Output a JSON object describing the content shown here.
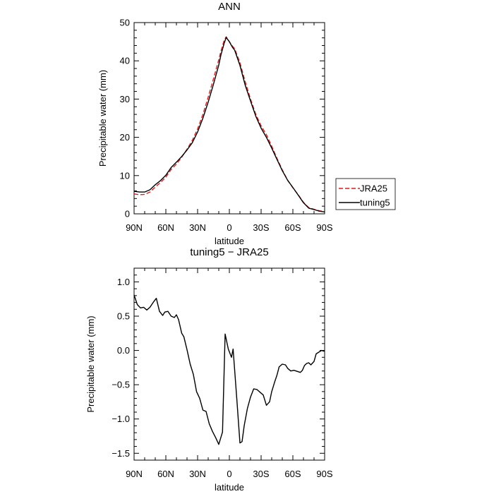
{
  "chart_data": [
    {
      "type": "line",
      "title": "ANN",
      "xlabel": "latitude",
      "ylabel": "Precipitable water  (mm)",
      "x_ticks": [
        {
          "value": 90,
          "label": "90N"
        },
        {
          "value": 60,
          "label": "60N"
        },
        {
          "value": 30,
          "label": "30N"
        },
        {
          "value": 0,
          "label": "0"
        },
        {
          "value": -30,
          "label": "30S"
        },
        {
          "value": -60,
          "label": "60S"
        },
        {
          "value": -90,
          "label": "90S"
        }
      ],
      "xlim": [
        90,
        -90
      ],
      "ylim": [
        0,
        50
      ],
      "y_ticks": [
        {
          "value": 0,
          "label": "0"
        },
        {
          "value": 10,
          "label": "10"
        },
        {
          "value": 20,
          "label": "20"
        },
        {
          "value": 30,
          "label": "30"
        },
        {
          "value": 40,
          "label": "40"
        },
        {
          "value": 50,
          "label": "50"
        }
      ],
      "legend_position": "right",
      "series": [
        {
          "name": "JRA25",
          "color": "#e41a1c",
          "dash": "dashed",
          "x": [
            90,
            85,
            80,
            75,
            70,
            65,
            60,
            55,
            50,
            45,
            40,
            35,
            30,
            25,
            20,
            15,
            10,
            8,
            5,
            3,
            0,
            -3,
            -5,
            -10,
            -15,
            -20,
            -25,
            -30,
            -35,
            -40,
            -45,
            -50,
            -55,
            -60,
            -65,
            -70,
            -75,
            -80,
            -85,
            -90
          ],
          "y": [
            5.2,
            5.0,
            5.1,
            5.7,
            7.0,
            8.2,
            9.6,
            11.6,
            13.0,
            14.8,
            16.9,
            19.2,
            22.2,
            26.0,
            30.5,
            35.3,
            40.3,
            42.5,
            45.3,
            46.3,
            45.0,
            43.8,
            43.2,
            39.5,
            34.5,
            30.0,
            26.0,
            23.0,
            20.7,
            17.7,
            14.5,
            11.5,
            8.8,
            6.8,
            5.0,
            3.0,
            1.6,
            1.2,
            0.8,
            0.6
          ]
        },
        {
          "name": "tuning5",
          "color": "#000000",
          "dash": "solid",
          "x": [
            90,
            85,
            80,
            75,
            70,
            65,
            60,
            55,
            50,
            45,
            40,
            35,
            30,
            25,
            20,
            15,
            10,
            8,
            5,
            3,
            0,
            -3,
            -5,
            -10,
            -15,
            -20,
            -25,
            -30,
            -35,
            -40,
            -45,
            -50,
            -55,
            -60,
            -65,
            -70,
            -75,
            -80,
            -85,
            -90
          ],
          "y": [
            5.9,
            5.7,
            5.7,
            6.3,
            7.6,
            8.7,
            10.1,
            12.1,
            13.5,
            15.0,
            16.7,
            18.6,
            21.4,
            25.0,
            29.2,
            33.9,
            38.9,
            41.5,
            44.5,
            46.1,
            45.0,
            43.5,
            42.8,
            38.8,
            33.6,
            29.5,
            25.5,
            22.4,
            20.0,
            17.2,
            14.2,
            11.3,
            8.8,
            6.9,
            4.9,
            2.9,
            1.5,
            1.1,
            0.7,
            0.5
          ]
        }
      ]
    },
    {
      "type": "line",
      "title": "tuning5 − JRA25",
      "xlabel": "latitude",
      "ylabel": "Precipitable water  (mm)",
      "x_ticks": [
        {
          "value": 90,
          "label": "90N"
        },
        {
          "value": 60,
          "label": "60N"
        },
        {
          "value": 30,
          "label": "30N"
        },
        {
          "value": 0,
          "label": "0"
        },
        {
          "value": -30,
          "label": "30S"
        },
        {
          "value": -60,
          "label": "60S"
        },
        {
          "value": -90,
          "label": "90S"
        }
      ],
      "xlim": [
        90,
        -90
      ],
      "ylim": [
        -1.6,
        1.2
      ],
      "y_ticks": [
        {
          "value": 1.0,
          "label": "1.0"
        },
        {
          "value": 0.5,
          "label": "0.5"
        },
        {
          "value": 0.0,
          "label": "0.0"
        },
        {
          "value": -0.5,
          "label": "−0.5"
        },
        {
          "value": -1.0,
          "label": "−1.0"
        },
        {
          "value": -1.5,
          "label": "−1.5"
        }
      ],
      "series": [
        {
          "color": "#000000",
          "dash": "solid",
          "x": [
            90,
            87,
            84,
            81,
            78,
            75,
            72,
            69,
            66,
            63,
            61,
            58,
            55,
            52,
            50,
            48,
            45,
            43,
            40,
            37,
            34,
            31,
            28,
            25,
            22,
            19,
            16,
            13,
            10,
            6.5,
            4,
            1,
            -2,
            -3.5,
            -7,
            -10,
            -12,
            -14,
            -17,
            -20,
            -23,
            -26,
            -29,
            -32,
            -35,
            -38,
            -40,
            -43,
            -45,
            -47,
            -50,
            -53,
            -55,
            -58,
            -61,
            -63,
            -65,
            -67,
            -69,
            -71,
            -73,
            -75,
            -77,
            -80,
            -82,
            -84,
            -87,
            -89,
            -90
          ],
          "y": [
            0.81,
            0.67,
            0.62,
            0.63,
            0.59,
            0.63,
            0.7,
            0.76,
            0.57,
            0.51,
            0.56,
            0.57,
            0.5,
            0.48,
            0.52,
            0.45,
            0.25,
            0.2,
            0.01,
            -0.2,
            -0.35,
            -0.6,
            -0.7,
            -0.87,
            -0.89,
            -1.07,
            -1.18,
            -1.27,
            -1.37,
            -1.19,
            0.24,
            0.02,
            -0.1,
            0.02,
            -0.7,
            -1.35,
            -1.33,
            -1.1,
            -0.85,
            -0.68,
            -0.56,
            -0.57,
            -0.61,
            -0.65,
            -0.8,
            -0.75,
            -0.6,
            -0.45,
            -0.36,
            -0.24,
            -0.2,
            -0.21,
            -0.26,
            -0.3,
            -0.29,
            -0.3,
            -0.31,
            -0.32,
            -0.29,
            -0.22,
            -0.19,
            -0.18,
            -0.21,
            -0.16,
            -0.05,
            -0.03,
            0.0,
            -0.01,
            -0.01
          ]
        }
      ]
    }
  ]
}
